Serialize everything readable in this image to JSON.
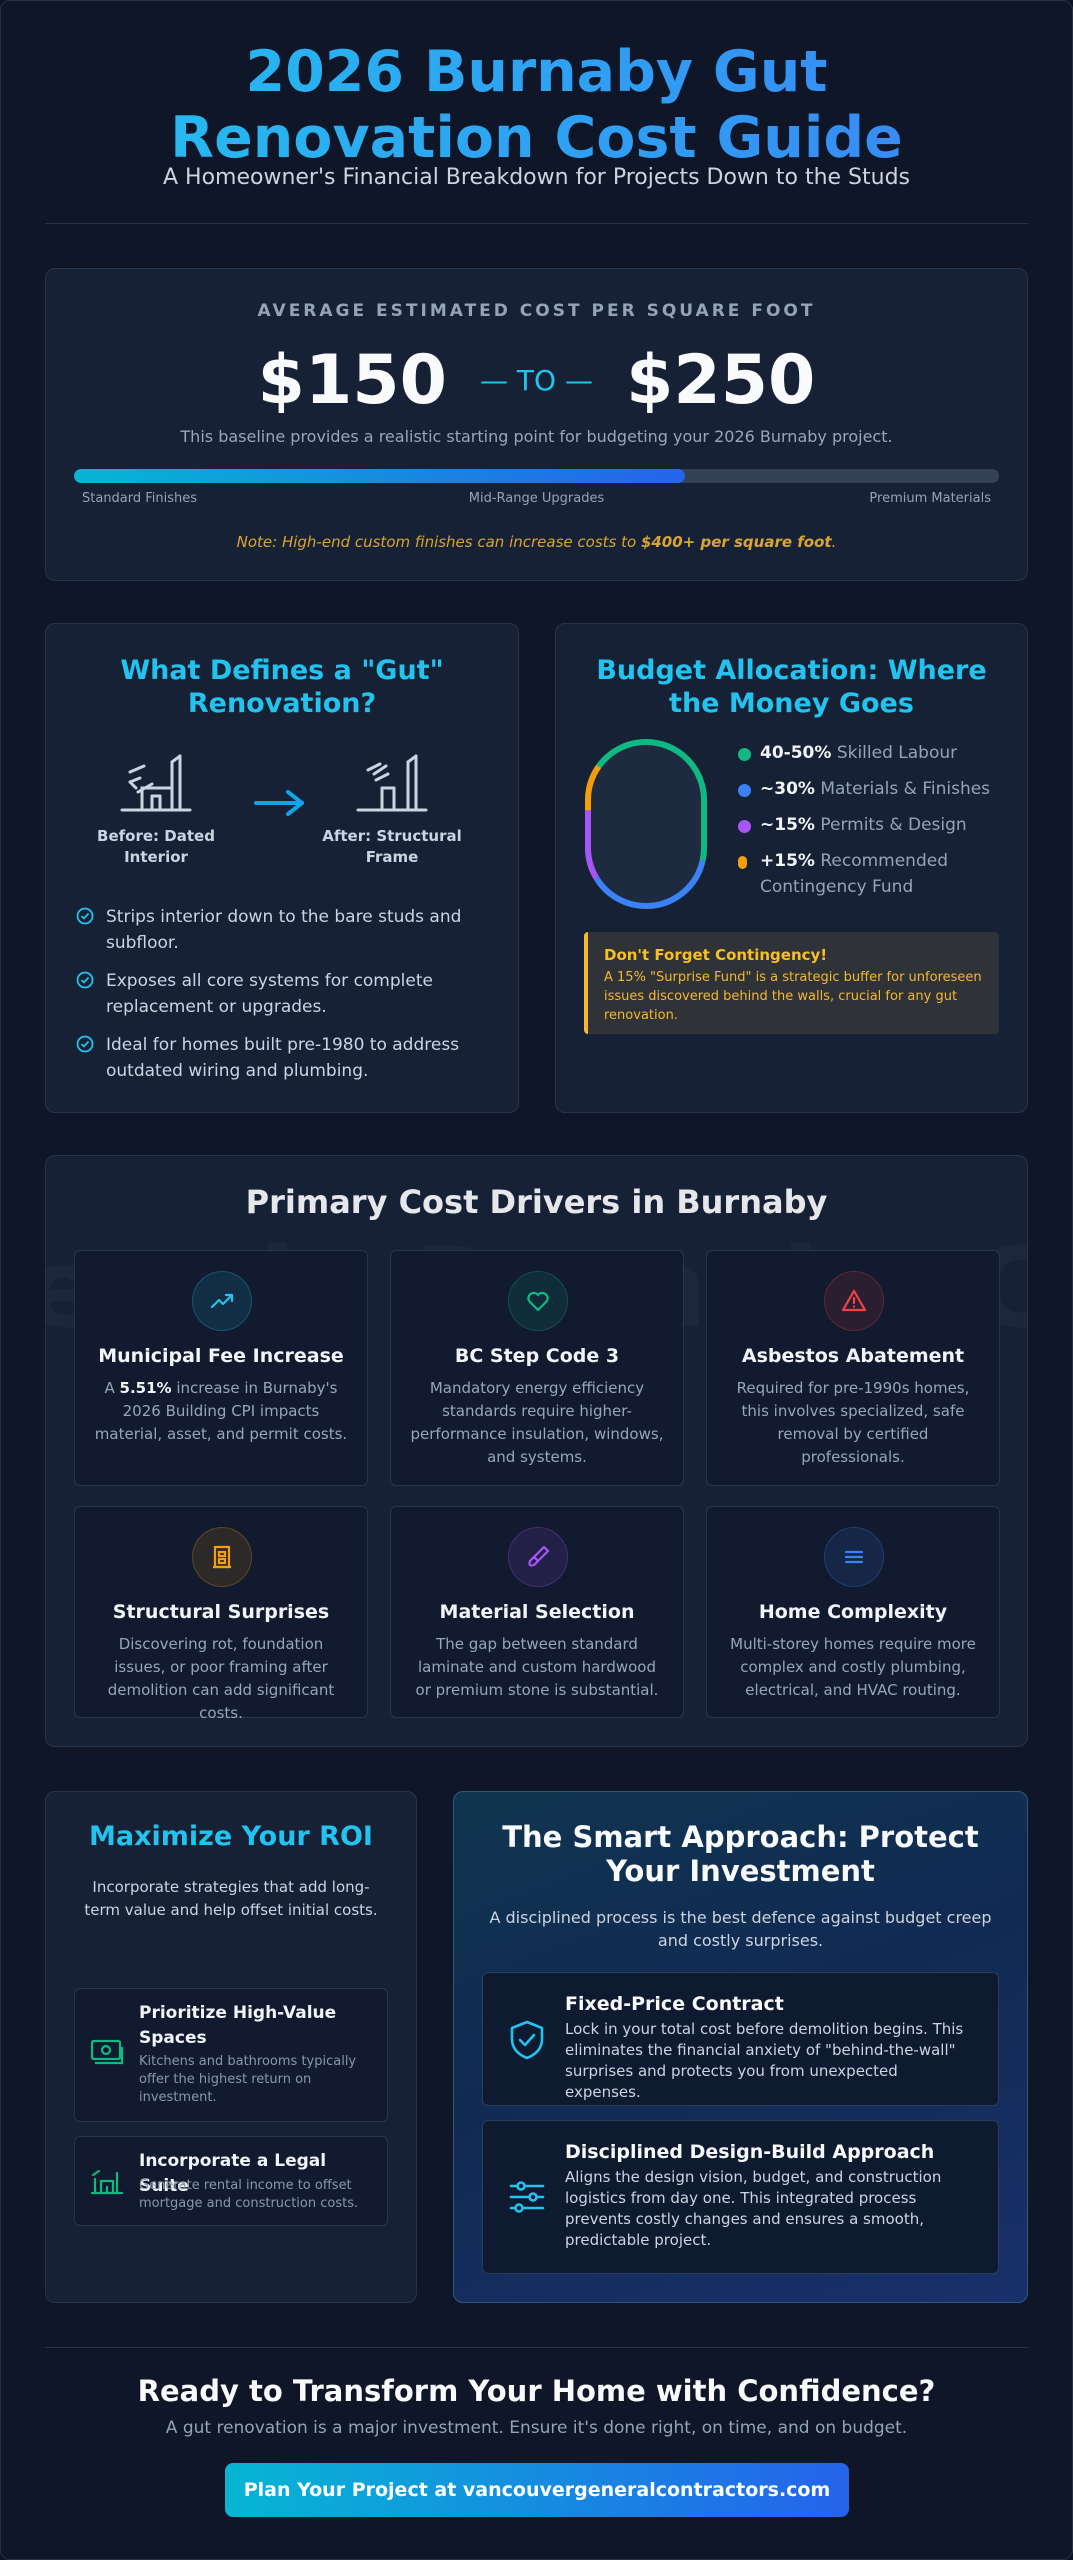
{
  "header": {
    "title": "2026 Burnaby Gut Renovation Cost Guide",
    "subtitle": "A Homeowner's Financial Breakdown for Projects Down to the Studs"
  },
  "cost": {
    "heading": "AVERAGE ESTIMATED COST PER SQUARE FOOT",
    "low": "$150",
    "to": "— TO —",
    "high": "$250",
    "description": "This baseline provides a realistic starting point for budgeting your 2026 Burnaby project.",
    "bar_fill_percent": 66,
    "scale": [
      "Standard Finishes",
      "Mid-Range Upgrades",
      "Premium Materials"
    ],
    "note_prefix": "Note: High-end custom finishes can increase costs to ",
    "note_highlight": "$400+ per square foot",
    "note_suffix": "."
  },
  "gut": {
    "title": "What Defines a \"Gut\" Renovation?",
    "before_label": "Before: Dated Interior",
    "after_label": "After: Structural Frame",
    "points": [
      "Strips interior down to the bare studs and subfloor.",
      "Exposes all core systems for complete replacement or upgrades.",
      "Ideal for homes built pre-1980 to address outdated wiring and plumbing."
    ]
  },
  "budget": {
    "title": "Budget Allocation: Where the Money Goes",
    "items": [
      {
        "value": "40-50%",
        "label": "Skilled Labour",
        "color": "#10b981"
      },
      {
        "value": "~30%",
        "label": "Materials & Finishes",
        "color": "#3b82f6"
      },
      {
        "value": "~15%",
        "label": "Permits & Design",
        "color": "#a855f7"
      },
      {
        "value": "+15%",
        "label": "Recommended Contingency Fund",
        "color": "#f59e0b"
      }
    ],
    "contingency_title": "Don't Forget Contingency!",
    "contingency_body": "A 15% \"Surprise Fund\" is a strategic buffer for unforeseen issues discovered behind the walls, crucial for any gut renovation."
  },
  "drivers": {
    "title": "Primary Cost Drivers in Burnaby",
    "watermark": "ers in Burnaby Cost",
    "items": [
      {
        "icon": "trending-up-icon",
        "title": "Municipal Fee Increase",
        "pre": "A ",
        "highlight": "5.51%",
        "body": " increase in Burnaby's 2026 Building CPI impacts material, asset, and permit costs.",
        "color": "#22c3ee"
      },
      {
        "icon": "heart-icon",
        "title": "BC Step Code 3",
        "pre": "",
        "highlight": "",
        "body": "Mandatory energy efficiency standards require higher-performance insulation, windows, and systems.",
        "color": "#10b981"
      },
      {
        "icon": "warning-icon",
        "title": "Asbestos Abatement",
        "pre": "",
        "highlight": "",
        "body": "Required for pre-1990s homes, this involves specialized, safe removal by certified professionals.",
        "color": "#ef4444"
      },
      {
        "icon": "building-icon",
        "title": "Structural Surprises",
        "pre": "",
        "highlight": "",
        "body": "Discovering rot, foundation issues, or poor framing after demolition can add significant costs.",
        "color": "#f59e0b"
      },
      {
        "icon": "brush-icon",
        "title": "Material Selection",
        "pre": "",
        "highlight": "",
        "body": "The gap between standard laminate and custom hardwood or premium stone is substantial.",
        "color": "#a855f7"
      },
      {
        "icon": "menu-lines-icon",
        "title": "Home Complexity",
        "pre": "",
        "highlight": "",
        "body": "Multi-storey homes require more complex and costly plumbing, electrical, and HVAC routing.",
        "color": "#3b82f6"
      }
    ]
  },
  "roi": {
    "title": "Maximize Your ROI",
    "description": "Incorporate strategies that add long-term value and help offset initial costs.",
    "items": [
      {
        "title": "Prioritize High-Value Spaces",
        "body": "Kitchens and bathrooms typically offer the highest return on investment."
      },
      {
        "title": "Incorporate a Legal Suite",
        "body": "Generate rental income to offset mortgage and construction costs."
      }
    ]
  },
  "smart": {
    "title": "The Smart Approach: Protect Your Investment",
    "description": "A disciplined process is the best defence against budget creep and costly surprises.",
    "items": [
      {
        "title": "Fixed-Price Contract",
        "body": "Lock in your total cost before demolition begins. This eliminates the financial anxiety of \"behind-the-wall\" surprises and protects you from unexpected expenses."
      },
      {
        "title": "Disciplined Design-Build Approach",
        "body": "Aligns the design vision, budget, and construction logistics from day one. This integrated process prevents costly changes and ensures a smooth, predictable project."
      }
    ]
  },
  "footer": {
    "title": "Ready to Transform Your Home with Confidence?",
    "subtitle": "A gut renovation is a major investment. Ensure it's done right, on time, and on budget.",
    "cta": "Plan Your Project at vancouvergeneralcontractors.com"
  }
}
